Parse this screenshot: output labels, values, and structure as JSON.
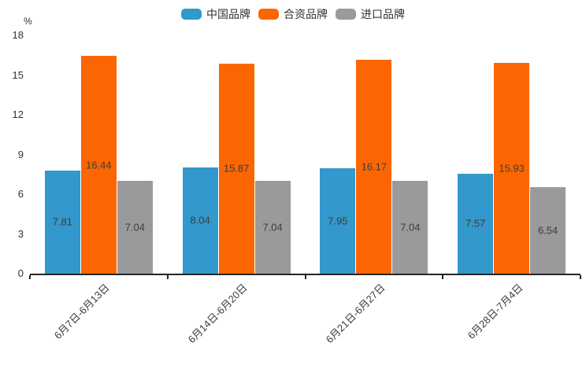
{
  "chart_data": {
    "type": "bar",
    "title": "",
    "ylabel": "%",
    "xlabel": "",
    "ylim": [
      0,
      18
    ],
    "yticks": [
      0,
      3,
      6,
      9,
      12,
      15,
      18
    ],
    "grid": false,
    "legend_position": "top",
    "categories": [
      "6月7日-6月13日",
      "6月14日-6月20日",
      "6月21日-6月27日",
      "6月28日-7月4日"
    ],
    "series": [
      {
        "name": "中国品牌",
        "color": "#3398cb",
        "values": [
          7.81,
          8.04,
          7.95,
          7.57
        ]
      },
      {
        "name": "合资品牌",
        "color": "#fc6602",
        "values": [
          16.44,
          15.87,
          16.17,
          15.93
        ]
      },
      {
        "name": "进口品牌",
        "color": "#9a9a9a",
        "values": [
          7.04,
          7.04,
          7.04,
          6.54
        ]
      }
    ],
    "axis_color": "#262626",
    "label_color": "#3d3d3d"
  }
}
